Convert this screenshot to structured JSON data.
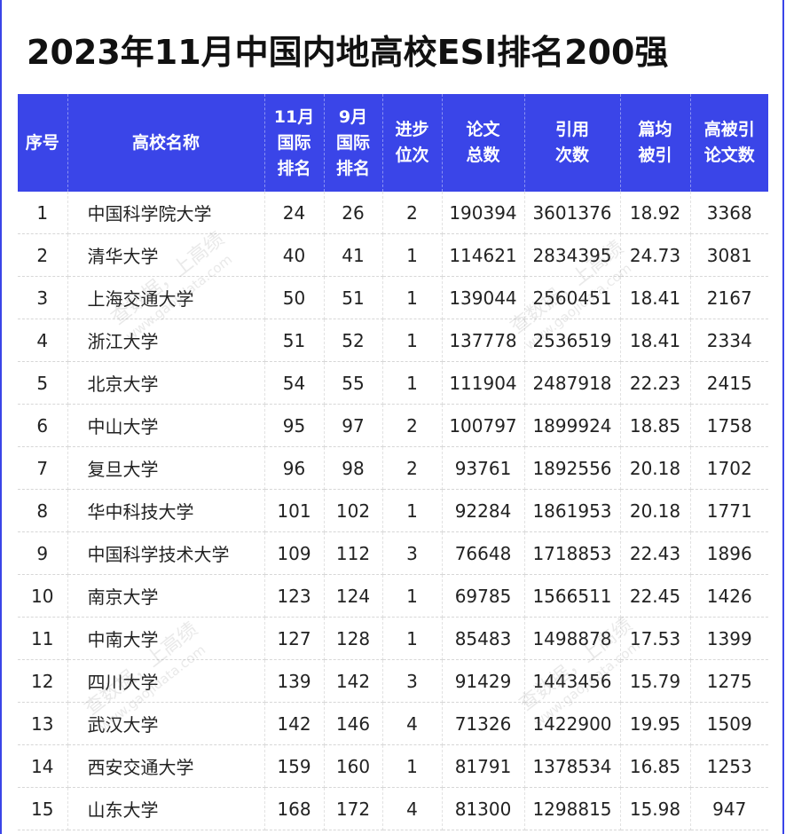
{
  "title": "2023年11月中国内地高校ESI排名200强",
  "colors": {
    "header_bg": "#3a45e8",
    "header_text": "#ffffff",
    "title_text": "#111111"
  },
  "table": {
    "headers": [
      [
        "序号"
      ],
      [
        "高校名称"
      ],
      [
        "11月",
        "国际",
        "排名"
      ],
      [
        "9月",
        "国际",
        "排名"
      ],
      [
        "进步",
        "位次"
      ],
      [
        "论文",
        "总数"
      ],
      [
        "引用",
        "次数"
      ],
      [
        "篇均",
        "被引"
      ],
      [
        "高被引",
        "论文数"
      ]
    ],
    "rows": [
      [
        "1",
        "中国科学院大学",
        "24",
        "26",
        "2",
        "190394",
        "3601376",
        "18.92",
        "3368"
      ],
      [
        "2",
        "清华大学",
        "40",
        "41",
        "1",
        "114621",
        "2834395",
        "24.73",
        "3081"
      ],
      [
        "3",
        "上海交通大学",
        "50",
        "51",
        "1",
        "139044",
        "2560451",
        "18.41",
        "2167"
      ],
      [
        "4",
        "浙江大学",
        "51",
        "52",
        "1",
        "137778",
        "2536519",
        "18.41",
        "2334"
      ],
      [
        "5",
        "北京大学",
        "54",
        "55",
        "1",
        "111904",
        "2487918",
        "22.23",
        "2415"
      ],
      [
        "6",
        "中山大学",
        "95",
        "97",
        "2",
        "100797",
        "1899924",
        "18.85",
        "1758"
      ],
      [
        "7",
        "复旦大学",
        "96",
        "98",
        "2",
        "93761",
        "1892556",
        "20.18",
        "1702"
      ],
      [
        "8",
        "华中科技大学",
        "101",
        "102",
        "1",
        "92284",
        "1861953",
        "20.18",
        "1771"
      ],
      [
        "9",
        "中国科学技术大学",
        "109",
        "112",
        "3",
        "76648",
        "1718853",
        "22.43",
        "1896"
      ],
      [
        "10",
        "南京大学",
        "123",
        "124",
        "1",
        "69785",
        "1566511",
        "22.45",
        "1426"
      ],
      [
        "11",
        "中南大学",
        "127",
        "128",
        "1",
        "85483",
        "1498878",
        "17.53",
        "1399"
      ],
      [
        "12",
        "四川大学",
        "139",
        "142",
        "3",
        "91429",
        "1443456",
        "15.79",
        "1275"
      ],
      [
        "13",
        "武汉大学",
        "142",
        "146",
        "4",
        "71326",
        "1422900",
        "19.95",
        "1509"
      ],
      [
        "14",
        "西安交通大学",
        "159",
        "160",
        "1",
        "81791",
        "1378534",
        "16.85",
        "1253"
      ],
      [
        "15",
        "山东大学",
        "168",
        "172",
        "4",
        "81300",
        "1298815",
        "15.98",
        "947"
      ]
    ]
  },
  "watermarks": [
    {
      "line1": "查数据，上高绩",
      "line2": "www.gaojidata.com"
    },
    {
      "line1": "查数据，上高绩",
      "line2": "www.gaojidata.com"
    },
    {
      "line1": "查数据，上高绩",
      "line2": "www.gaojidata.com"
    },
    {
      "line1": "查数据，上高绩",
      "line2": "www.gaojidata.com"
    }
  ]
}
